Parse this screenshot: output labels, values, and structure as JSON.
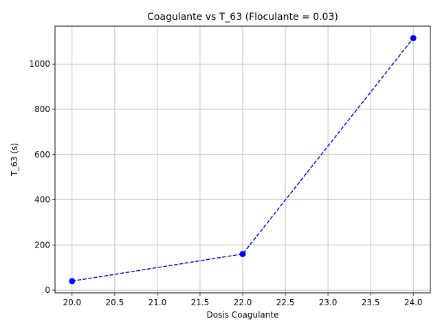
{
  "chart_data": {
    "type": "line",
    "title": "Coagulante vs T_63 (Floculante = 0.03)",
    "xlabel": "Dosis Coagulante",
    "ylabel": "T_63 (s)",
    "xlim": [
      19.8,
      24.2
    ],
    "ylim": [
      -12,
      1168
    ],
    "xticks": [
      "20.0",
      "20.5",
      "21.0",
      "21.5",
      "22.0",
      "22.5",
      "23.0",
      "23.5",
      "24.0"
    ],
    "yticks": [
      "0",
      "200",
      "400",
      "600",
      "800",
      "1000"
    ],
    "grid": true,
    "series": [
      {
        "color": "#0000ff",
        "line_style": "dashed",
        "marker": "circle",
        "x": [
          20.0,
          22.0,
          24.0
        ],
        "y": [
          40,
          160,
          1115
        ]
      }
    ]
  }
}
